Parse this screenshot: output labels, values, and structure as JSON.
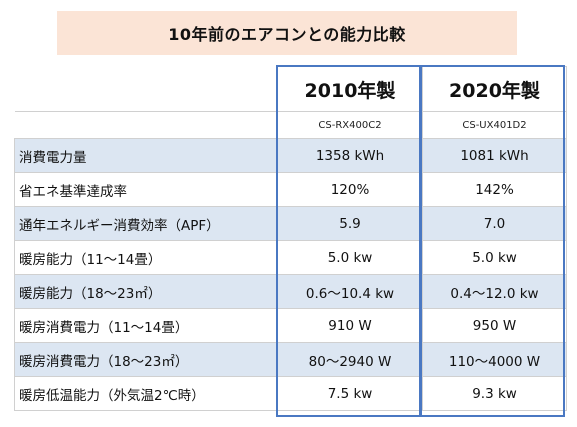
{
  "title": "10年前のエアコンとの能力比較",
  "columns": [
    {
      "year": "2010年製",
      "model": "CS-RX400C2"
    },
    {
      "year": "2020年製",
      "model": "CS-UX401D2"
    }
  ],
  "rows": [
    {
      "label": "消費電力量",
      "a": "1358 kWh",
      "b": "1081 kWh"
    },
    {
      "label": "省エネ基準達成率",
      "a": "120%",
      "b": "142%"
    },
    {
      "label": "通年エネルギー消費効率（APF）",
      "a": "5.9",
      "b": "7.0"
    },
    {
      "label": "暖房能力（11～14畳）",
      "a": "5.0 kw",
      "b": "5.0 kw"
    },
    {
      "label": "暖房能力（18～23㎡）",
      "a": "0.6～10.4 kw",
      "b": "0.4～12.0 kw"
    },
    {
      "label": "暖房消費電力（11～14畳）",
      "a": "910 W",
      "b": "950 W"
    },
    {
      "label": "暖房消費電力（18～23㎡）",
      "a": "80～2940 W",
      "b": "110～4000 W"
    },
    {
      "label": "暖房低温能力（外気温2℃時）",
      "a": "7.5 kw",
      "b": "9.3 kw"
    }
  ],
  "colors": {
    "title_bg": "#fbe4d6",
    "row_shade": "#dce6f2",
    "frame": "#4a78c2"
  }
}
